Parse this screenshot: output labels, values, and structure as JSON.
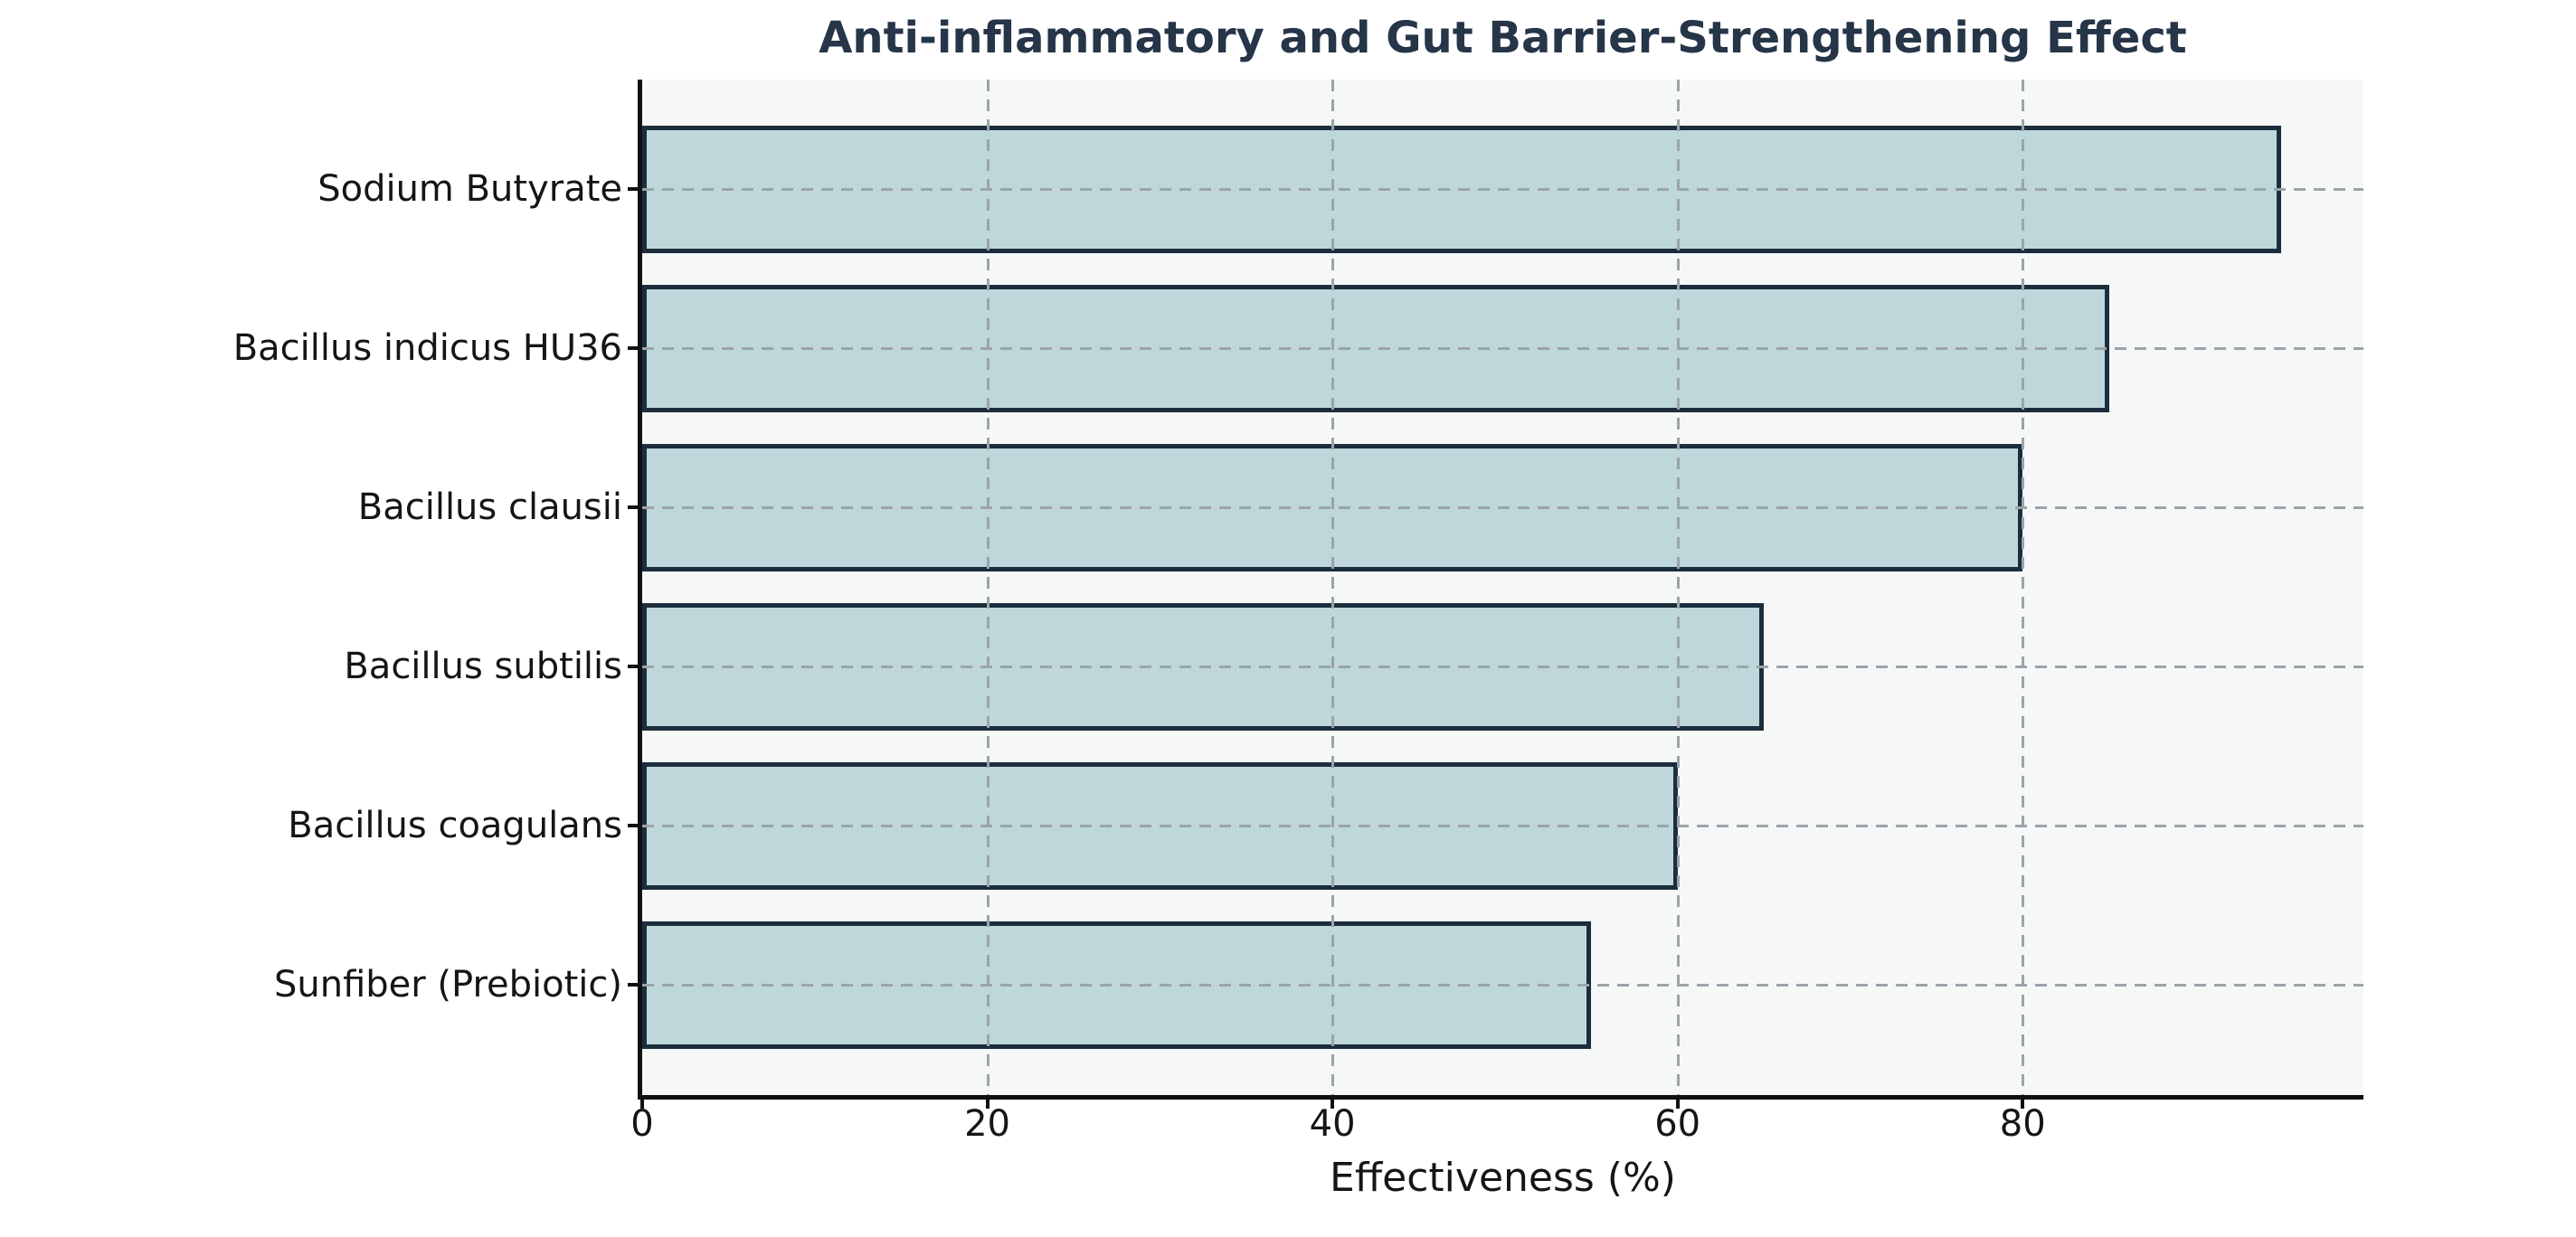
{
  "chart_data": {
    "type": "bar",
    "orientation": "horizontal",
    "title": "Anti-inflammatory and Gut Barrier-Strengthening Effect",
    "categories": [
      "Sodium Butyrate",
      "Bacillus indicus HU36",
      "Bacillus clausii",
      "Bacillus subtilis",
      "Bacillus coagulans",
      "Sunfiber (Prebiotic)"
    ],
    "values": [
      95,
      85,
      80,
      65,
      60,
      55
    ],
    "xlabel": "Effectiveness (%)",
    "ylabel": "",
    "xlim": [
      0,
      100
    ],
    "xticks": [
      0,
      20,
      40,
      60,
      80
    ],
    "grid": true,
    "grid_style": "dashed",
    "legend_position": "none",
    "colors": {
      "bar_fill": "#bed7db",
      "bar_edge": "#1c2e3d",
      "plot_background": "#f6f8f8",
      "page_background": "#ffffff",
      "title_text": "#263548",
      "grid": "#9aa4aa",
      "axis": "#111111",
      "tick_label_text": "#151515"
    }
  }
}
